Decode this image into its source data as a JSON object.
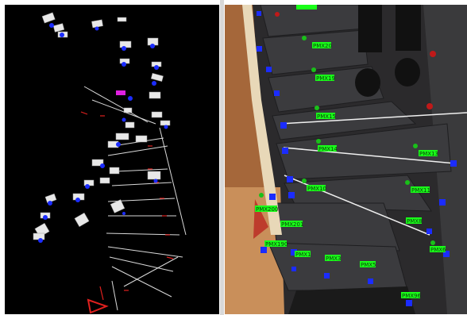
{
  "left_view": {
    "name": "point-cloud-3d-view",
    "marker_color": "#1b2cff",
    "line_color": "#d9d9d9",
    "accent_red": "#e0201e",
    "accent_magenta": "#e020e0"
  },
  "right_view": {
    "name": "camera-image-view",
    "label_bg": "#19ff19",
    "marker_color": "#1b2cff",
    "line_color": "#f0f0f0",
    "labels": [
      {
        "id": "lbl_1",
        "text": "PMX20"
      },
      {
        "id": "lbl_2",
        "text": "PMX19"
      },
      {
        "id": "lbl_3",
        "text": "PMX15"
      },
      {
        "id": "lbl_4",
        "text": "PMX14"
      },
      {
        "id": "lbl_5",
        "text": "PMX13"
      },
      {
        "id": "lbl_6",
        "text": "PMX10"
      },
      {
        "id": "lbl_7",
        "text": "PMX11"
      },
      {
        "id": "lbl_8",
        "text": "PMX200"
      },
      {
        "id": "lbl_9",
        "text": "PMX201"
      },
      {
        "id": "lbl_10",
        "text": "PMX190"
      },
      {
        "id": "lbl_11",
        "text": "PMX1"
      },
      {
        "id": "lbl_12",
        "text": "PMX3"
      },
      {
        "id": "lbl_13",
        "text": "PMX5"
      },
      {
        "id": "lbl_14",
        "text": "PMX8"
      },
      {
        "id": "lbl_15",
        "text": "PMX6"
      },
      {
        "id": "lbl_16",
        "text": "PMX96"
      }
    ]
  }
}
